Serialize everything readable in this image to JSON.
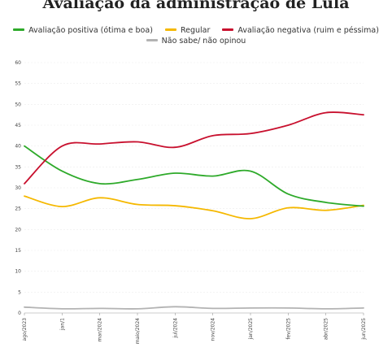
{
  "chart_data": {
    "type": "line",
    "title": "Avaliação da administração de Lula",
    "x": [
      "ago/2023",
      "jan/1",
      "mar/2024",
      "maio/2024",
      "jul/2024",
      "nov/2024",
      "jan/2025",
      "fev/2025",
      "abr/2025",
      "jun/2025"
    ],
    "ylim": [
      0,
      60
    ],
    "yticks": [
      0,
      5,
      10,
      15,
      20,
      25,
      30,
      35,
      40,
      45,
      50,
      55,
      60
    ],
    "grid": true,
    "legend_position": "top",
    "series": [
      {
        "name": "Avaliação positiva (ótima e boa)",
        "color": "#2eaa2a",
        "values": [
          40,
          34,
          31,
          32,
          33.5,
          32.8,
          34,
          28.5,
          26.5,
          25.6
        ]
      },
      {
        "name": "Regular",
        "color": "#f5b800",
        "values": [
          28,
          25.5,
          27.6,
          26,
          25.7,
          24.5,
          22.6,
          25.2,
          24.6,
          25.8
        ]
      },
      {
        "name": "Avaliação negativa (ruim e péssima)",
        "color": "#c8102e",
        "values": [
          31,
          40,
          40.5,
          41,
          39.7,
          42.5,
          43,
          45,
          48,
          47.5
        ]
      },
      {
        "name": "Não sabe/ não opinou",
        "color": "#b3b3b3",
        "values": [
          1.4,
          1.0,
          1.1,
          1.0,
          1.5,
          1.1,
          1.2,
          1.2,
          1.0,
          1.2
        ]
      }
    ]
  }
}
